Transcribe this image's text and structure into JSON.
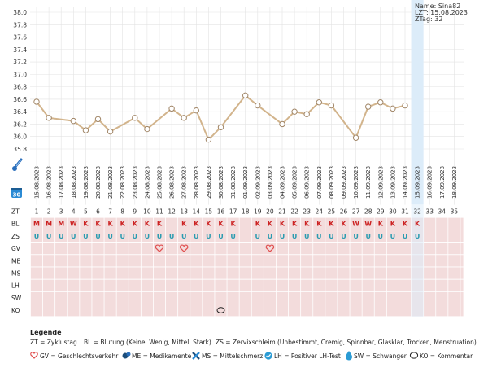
{
  "info": {
    "name": "Name: Sina82",
    "lzt": "LZT: 15.08.2023",
    "ztag": "ZTag: 32"
  },
  "chart_data": {
    "type": "line",
    "ylim": [
      35.8,
      38.0
    ],
    "y_ticks": [
      "38.0",
      "37.8",
      "37.6",
      "37.4",
      "37.2",
      "37.0",
      "36.8",
      "36.6",
      "36.4",
      "36.2",
      "36.0",
      "35.8"
    ],
    "dates": [
      "15.08.2023",
      "16.08.2023",
      "17.08.2023",
      "18.08.2023",
      "19.08.2023",
      "20.08.2023",
      "21.08.2023",
      "22.08.2023",
      "23.08.2023",
      "24.08.2023",
      "25.08.2023",
      "26.08.2023",
      "27.08.2023",
      "28.08.2023",
      "29.08.2023",
      "30.08.2023",
      "31.08.2023",
      "01.09.2023",
      "02.09.2023",
      "03.09.2023",
      "04.09.2023",
      "05.09.2023",
      "06.09.2023",
      "07.09.2023",
      "08.09.2023",
      "09.09.2023",
      "10.09.2023",
      "11.09.2023",
      "12.09.2023",
      "13.09.2023",
      "14.09.2023",
      "15.09.2023",
      "16.09.2023",
      "17.09.2023",
      "18.09.2023"
    ],
    "temperatures": [
      36.56,
      36.3,
      null,
      36.25,
      36.1,
      36.28,
      36.08,
      null,
      36.3,
      36.12,
      null,
      36.45,
      36.3,
      36.42,
      35.95,
      36.15,
      null,
      36.66,
      36.5,
      null,
      36.2,
      36.4,
      36.36,
      36.55,
      36.5,
      null,
      35.98,
      36.48,
      36.55,
      36.45,
      36.5,
      null,
      null,
      null,
      null
    ],
    "highlight_index": 31,
    "line_color": "#d2b48c"
  },
  "rows": {
    "zt": {
      "label": "ZT",
      "values": [
        "1",
        "2",
        "3",
        "4",
        "5",
        "6",
        "7",
        "8",
        "9",
        "10",
        "11",
        "12",
        "13",
        "14",
        "15",
        "16",
        "17",
        "18",
        "19",
        "20",
        "21",
        "22",
        "23",
        "24",
        "25",
        "26",
        "27",
        "28",
        "29",
        "30",
        "31",
        "32",
        "33",
        "34",
        "35"
      ]
    },
    "bl": {
      "label": "BL",
      "values": [
        "M",
        "M",
        "M",
        "W",
        "K",
        "K",
        "K",
        "K",
        "K",
        "K",
        "K",
        "",
        "K",
        "K",
        "K",
        "K",
        "K",
        "",
        "K",
        "K",
        "K",
        "K",
        "K",
        "K",
        "K",
        "K",
        "W",
        "W",
        "K",
        "K",
        "K",
        "K",
        "",
        "",
        ""
      ]
    },
    "zs": {
      "label": "ZS",
      "values": [
        "U",
        "U",
        "U",
        "U",
        "U",
        "U",
        "U",
        "U",
        "U",
        "U",
        "U",
        "U",
        "U",
        "U",
        "U",
        "U",
        "U",
        "",
        "U",
        "U",
        "U",
        "U",
        "U",
        "U",
        "U",
        "U",
        "U",
        "U",
        "U",
        "U",
        "U",
        "U",
        "",
        "",
        ""
      ]
    },
    "gv": {
      "label": "GV",
      "hearts": [
        10,
        12,
        19
      ]
    },
    "me": {
      "label": "ME"
    },
    "ms": {
      "label": "MS"
    },
    "lh": {
      "label": "LH"
    },
    "sw": {
      "label": "SW"
    },
    "ko": {
      "label": "KO",
      "comments": [
        15
      ]
    }
  },
  "legend": {
    "title": "Legende",
    "line1": [
      {
        "text": "ZT = Zyklustag"
      },
      {
        "text": "BL = Blutung (",
        "tail": ""
      },
      {
        "text": "Keine"
      },
      {
        "text": "Wenig"
      },
      {
        "text": "Mittel"
      },
      {
        "text": "Stark"
      }
    ],
    "zt": "ZT = Zyklustag",
    "bl": "BL = Blutung (Keine, Wenig, Mittel, Stark)",
    "zs": "ZS = Zervixschleim (Unbestimmt, Cremig, Spinnbar, Glasklar, Trocken, Menstruation)",
    "gv": "GV = Geschlechtsverkehr",
    "me": "ME = Medikamente",
    "ms": "MS = Mittelschmerz",
    "lh": "LH = Positiver LH-Test",
    "sw": "SW = Schwanger",
    "ko": "KO = Kommentar"
  },
  "colors": {
    "bl_text": "#cc2222",
    "zs_icon": "#2a9bb0",
    "heart": "#e05050",
    "row_bg": "#f3dcdc",
    "highlight": "#dcecf9",
    "grid": "#e3e3e3"
  },
  "icons": {
    "thermometer": "thermometer-icon",
    "calendar": "calendar-icon",
    "heart": "heart-icon",
    "medicine": "pills-icon",
    "pain": "cross-icon",
    "lh": "check-circle-icon",
    "pregnant": "drop-icon",
    "comment": "speech-bubble-icon"
  }
}
